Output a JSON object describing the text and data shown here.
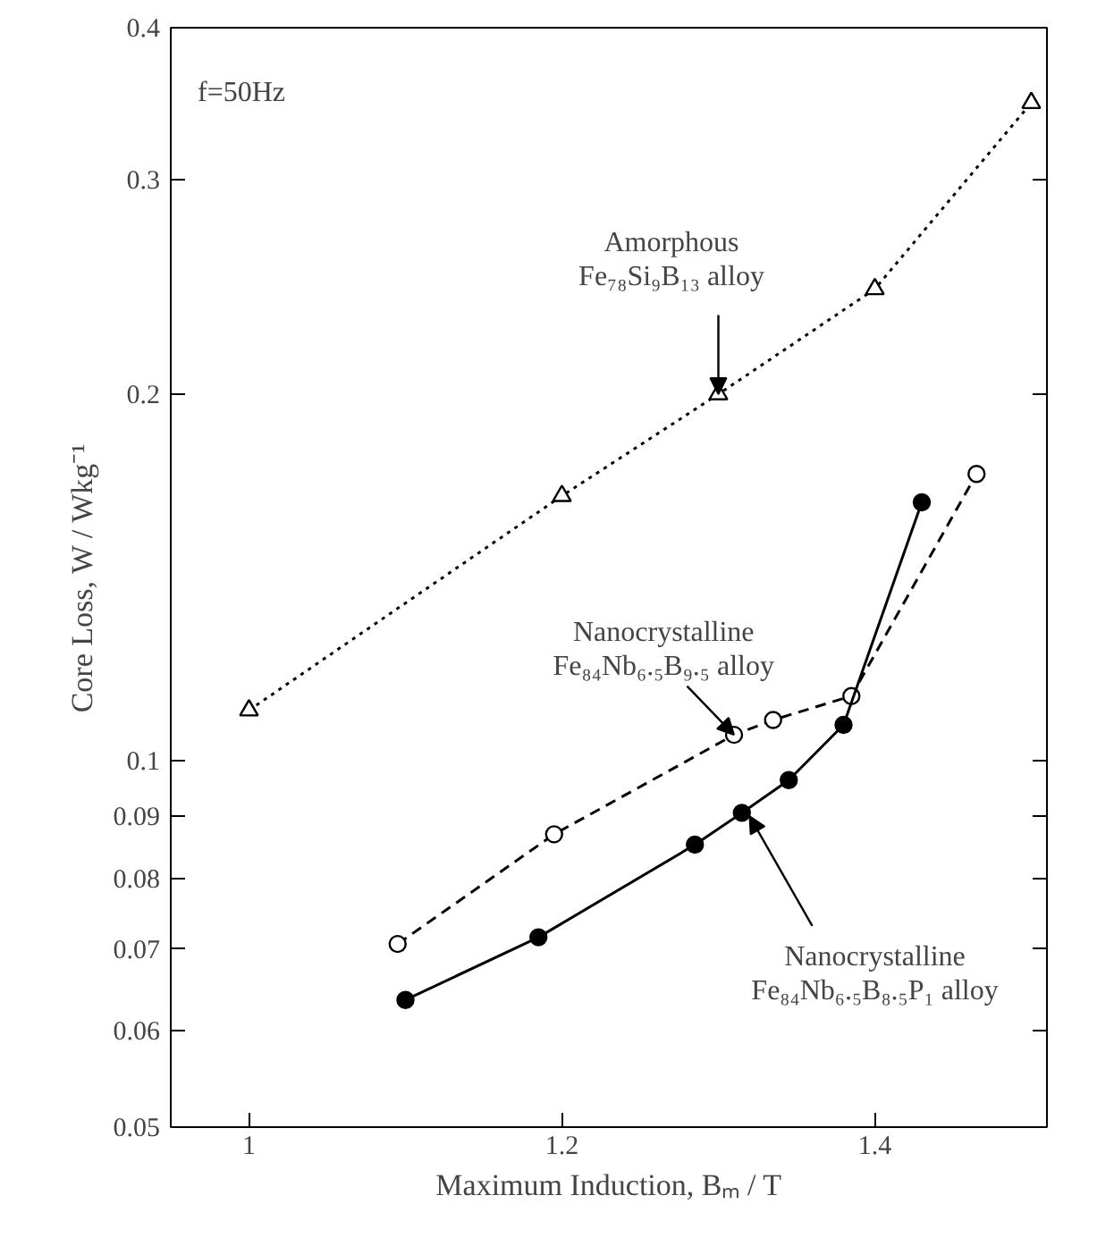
{
  "chart_data": {
    "type": "line",
    "xlabel": "Maximum Induction, Bₘ / T",
    "ylabel": "Core Loss, W / Wkg⁻¹",
    "log": "y",
    "xlim": [
      0.95,
      1.51
    ],
    "ylim": [
      0.05,
      0.4
    ],
    "xticks": [
      1,
      1.2,
      1.4
    ],
    "yticks": [
      0.05,
      0.06,
      0.07,
      0.08,
      0.09,
      0.1,
      0.2,
      0.3,
      0.4
    ],
    "grid": false,
    "series": [
      {
        "color": "#000000",
        "marker": "triangle",
        "line_style": "dotted",
        "x": [
          1.0,
          1.2,
          1.3,
          1.4,
          1.5
        ],
        "values": [
          0.11,
          0.165,
          0.2,
          0.244,
          0.347
        ]
      },
      {
        "color": "#000000",
        "marker": "circle",
        "line_style": "dashed",
        "x": [
          1.095,
          1.195,
          1.31,
          1.335,
          1.385,
          1.465
        ],
        "values": [
          0.0707,
          0.087,
          0.105,
          0.108,
          0.113,
          0.172
        ]
      },
      {
        "color": "#000000",
        "marker": "circle",
        "line_style": "solid",
        "x": [
          1.1,
          1.185,
          1.285,
          1.315,
          1.345,
          1.38,
          1.43
        ],
        "values": [
          0.0636,
          0.0716,
          0.0853,
          0.0906,
          0.0964,
          0.107,
          0.163
        ]
      }
    ],
    "annotations": [
      "f=50Hz",
      {
        "text": "Amorphous\nFe₇₈Si₉B₁₃ alloy",
        "x": 1.3,
        "y": 0.2
      },
      {
        "text": "Nanocrystalline\nFe₈₄Nb₆.₅B₉.₅ alloy",
        "x": 1.31,
        "y": 0.105
      },
      {
        "text": "Nanocrystalline\nFe₈₄Nb₆.₅B₈.₅P₁ alloy",
        "x": 1.32,
        "y": 0.09
      }
    ]
  }
}
